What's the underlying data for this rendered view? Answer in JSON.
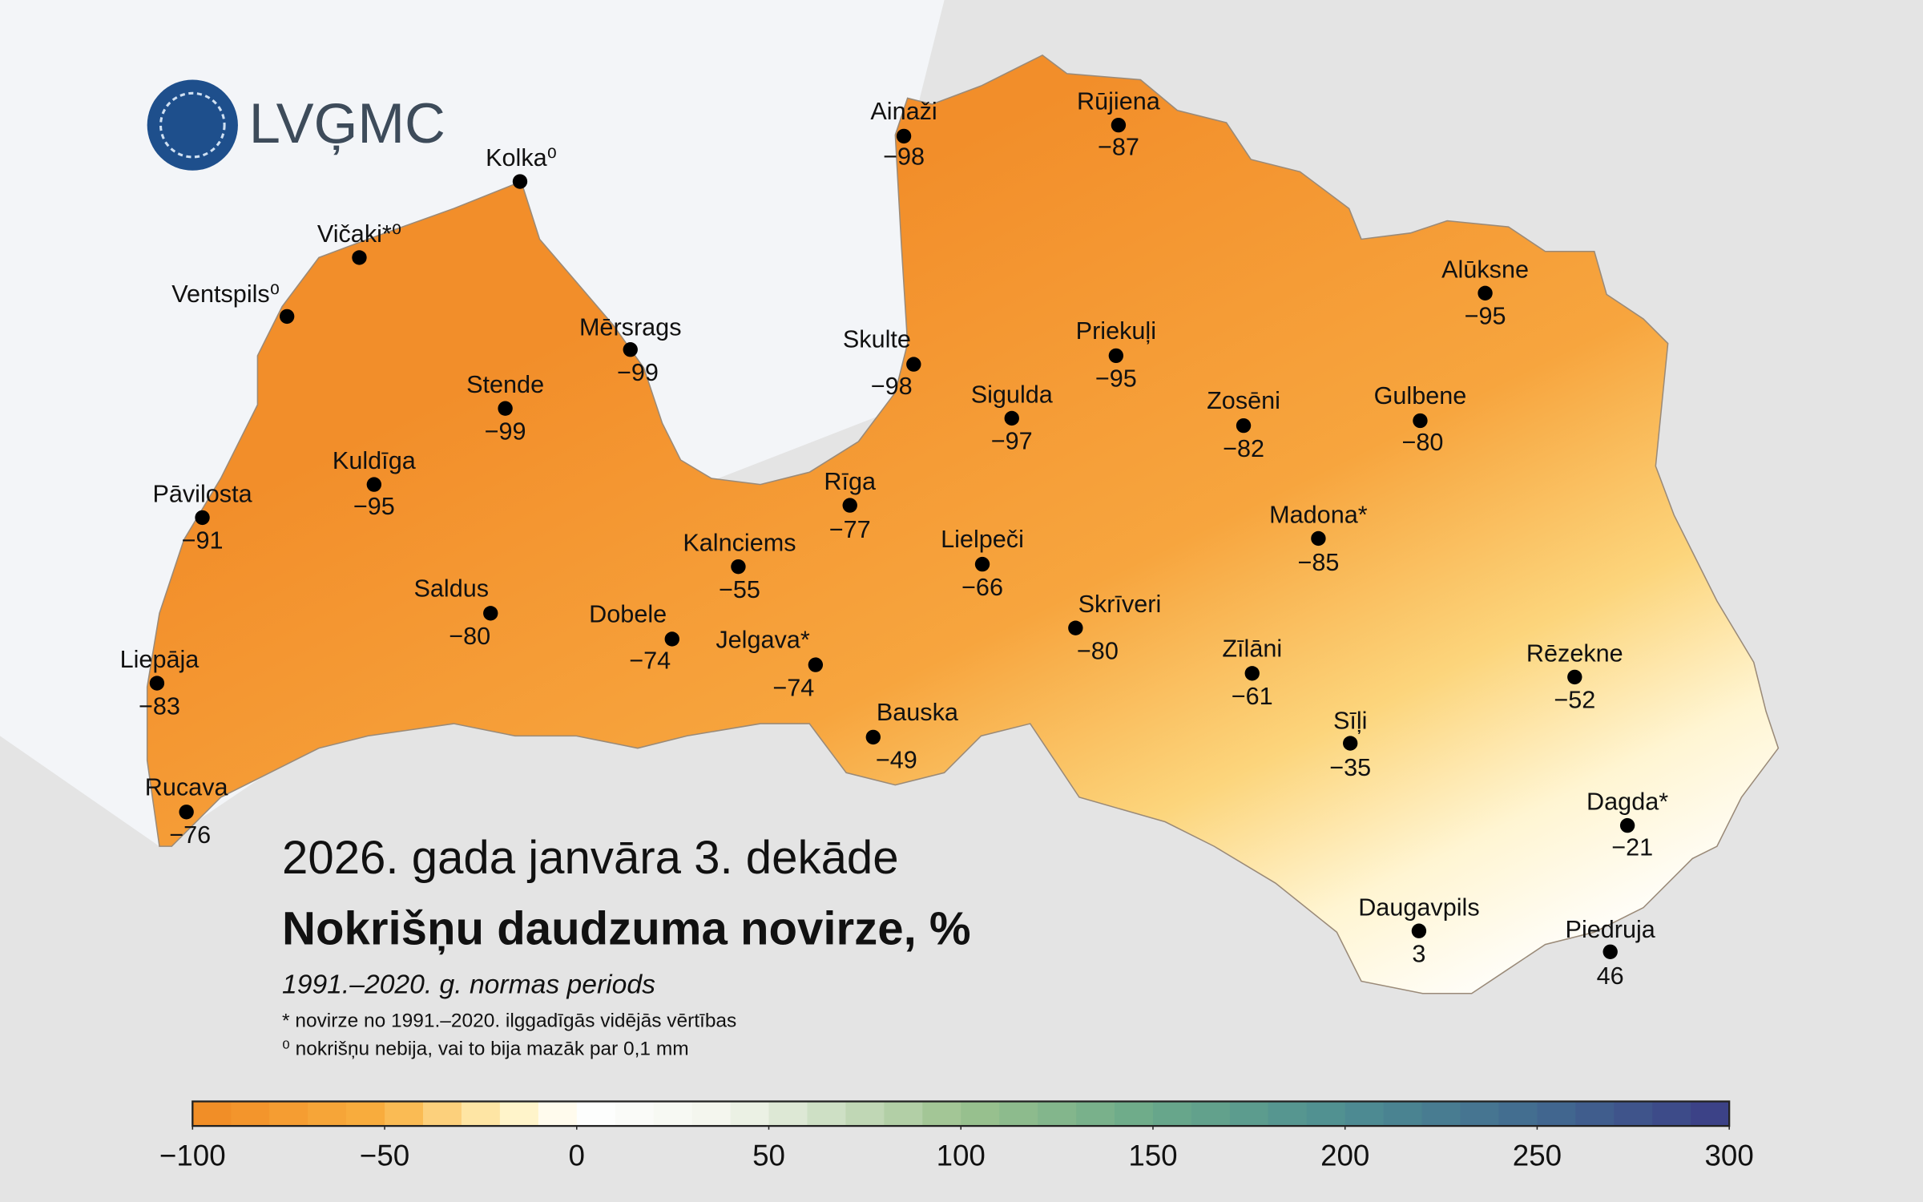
{
  "logo": "LVĢMC",
  "title": "2026. gada janvāra 3. dekāde",
  "subtitle": "Nokrišņu daudzuma novirze, %",
  "period": "1991.–2020. g. normas periods",
  "notes": [
    "* novirze no 1991.–2020. ilggadīgās vidējās vērtības",
    "⁰ nokrišņu nebija, vai to bija mazāk par 0,1 mm"
  ],
  "stations": [
    {
      "name": "Kolka⁰"
    },
    {
      "name": "Vičaki*⁰"
    },
    {
      "name": "Ventspils⁰"
    },
    {
      "name": "Mērsrags",
      "value": -99,
      "value_label": "−99"
    },
    {
      "name": "Stende",
      "value": -99,
      "value_label": "−99"
    },
    {
      "name": "Kuldīga",
      "value": -95,
      "value_label": "−95"
    },
    {
      "name": "Pāvilosta",
      "value": -91,
      "value_label": "−91"
    },
    {
      "name": "Saldus",
      "value": -80,
      "value_label": "−80"
    },
    {
      "name": "Liepāja",
      "value": -83,
      "value_label": "−83"
    },
    {
      "name": "Rucava",
      "value": -76,
      "value_label": "−76"
    },
    {
      "name": "Dobele",
      "value": -74,
      "value_label": "−74"
    },
    {
      "name": "Kalnciems",
      "value": -55,
      "value_label": "−55"
    },
    {
      "name": "Jelgava*",
      "value": -74,
      "value_label": "−74"
    },
    {
      "name": "Bauska",
      "value": -49,
      "value_label": "−49"
    },
    {
      "name": "Rīga",
      "value": -77,
      "value_label": "−77"
    },
    {
      "name": "Lielpeči",
      "value": -66,
      "value_label": "−66"
    },
    {
      "name": "Skulte",
      "value": -98,
      "value_label": "−98"
    },
    {
      "name": "Ainaži",
      "value": -98,
      "value_label": "−98"
    },
    {
      "name": "Sigulda",
      "value": -97,
      "value_label": "−97"
    },
    {
      "name": "Rūjiena",
      "value": -87,
      "value_label": "−87"
    },
    {
      "name": "Priekuļi",
      "value": -95,
      "value_label": "−95"
    },
    {
      "name": "Zosēni",
      "value": -82,
      "value_label": "−82"
    },
    {
      "name": "Gulbene",
      "value": -80,
      "value_label": "−80"
    },
    {
      "name": "Alūksne",
      "value": -95,
      "value_label": "−95"
    },
    {
      "name": "Madona*",
      "value": -85,
      "value_label": "−85"
    },
    {
      "name": "Skrīveri",
      "value": -80,
      "value_label": "−80"
    },
    {
      "name": "Zīlāni",
      "value": -61,
      "value_label": "−61"
    },
    {
      "name": "Sīļi",
      "value": -35,
      "value_label": "−35"
    },
    {
      "name": "Rēzekne",
      "value": -52,
      "value_label": "−52"
    },
    {
      "name": "Dagda*",
      "value": -21,
      "value_label": "−21"
    },
    {
      "name": "Daugavpils",
      "value": 3
    },
    {
      "name": "Piedruja",
      "value": 46
    }
  ],
  "colorbar": {
    "range": [
      -100,
      300
    ],
    "ticks": [
      {
        "value": -100,
        "label": "−100"
      },
      {
        "value": -50,
        "label": "−50"
      },
      0,
      50,
      100,
      150,
      200,
      250,
      300
    ],
    "color_stops": [
      [
        -100,
        "#f08a24"
      ],
      [
        -50,
        "#f9b040"
      ],
      [
        -20,
        "#fff0b8"
      ],
      [
        0,
        "#ffffff"
      ],
      [
        40,
        "#f2f5ec"
      ],
      [
        100,
        "#9cc28e"
      ],
      [
        150,
        "#6aa98a"
      ],
      [
        200,
        "#4e8e92"
      ],
      [
        250,
        "#426a90"
      ],
      [
        300,
        "#3b3e86"
      ]
    ]
  }
}
